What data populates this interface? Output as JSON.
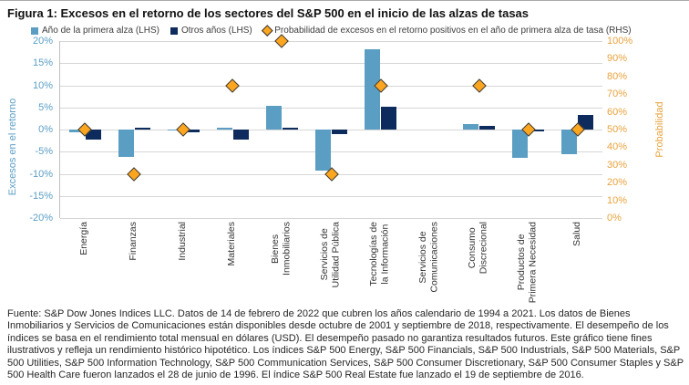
{
  "title": "Figura 1: Excesos en el retorno de los sectores del S&P 500 en el inicio de las alzas de tasas",
  "footnote": "Fuente: S&P Dow Jones Indices LLC. Datos de 14 de febrero de 2022 que cubren los años calendario de 1994 a 2021. Los datos de Bienes Inmobiliarios y Servicios de Comunicaciones están disponibles desde octubre de 2001 y septiembre de 2018, respectivamente. El desempeño de los índices se basa en el rendimiento total mensual en dólares (USD). El desempeño pasado no garantiza resultados futuros. Este gráfico tiene fines ilustrativos y refleja un rendimiento histórico hipotético. Los índices S&P 500 Energy, S&P 500 Financials, S&P 500 Industrials, S&P 500 Materials, S&P 500 Utilities, S&P 500 Information Technology, S&P 500 Communication Services, S&P 500 Consumer Discretionary, S&P 500 Consumer Staples y S&P 500 Health Care fueron lanzados el 28 de junio de 1996. El índice S&P 500 Real Estate fue lanzado el 19 de septiembre de 2016.",
  "chart_data": {
    "type": "bar",
    "legend_position": "top",
    "grid": true,
    "categories": [
      "Energía",
      "Finanzas",
      "Industrial",
      "Materiales",
      "Bienes Inmobiliarios",
      "Servicios de Utilidad Pública",
      "Tecnologías de la Información",
      "Servicios de Comunicaciones",
      "Consumo Discrecional",
      "Productos de Primera Necesidad",
      "Salud"
    ],
    "categories_display": [
      "Energía",
      "Finanzas",
      "Industrial",
      "Materiales",
      "Bienes\nInmobiliarios",
      "Servicios de\nUtilidad Pública",
      "Tecnologías de\nla Información",
      "Servicios de\nComunicaciones",
      "Consumo\nDiscrecional",
      "Productos de\nPrimera Necesidad",
      "Salud"
    ],
    "series": [
      {
        "name": "Año de la primera alza (LHS)",
        "type": "bar",
        "axis": "left",
        "marker": "square",
        "color": "#5b9ec4",
        "values": [
          -0.7,
          -6.2,
          -0.1,
          0.5,
          5.3,
          -9.2,
          18.2,
          null,
          1.3,
          -6.3,
          -5.6
        ]
      },
      {
        "name": "Otros años (LHS)",
        "type": "bar",
        "axis": "left",
        "marker": "square",
        "color": "#0d2b5c",
        "values": [
          -2.3,
          0.5,
          -0.6,
          -2.2,
          0.4,
          -1.0,
          5.1,
          null,
          0.9,
          -0.4,
          3.4
        ]
      },
      {
        "name": "Probabilidad de excesos en el retorno positivos en el año de primera alza de tasa (RHS)",
        "type": "scatter",
        "axis": "right",
        "marker": "diamond",
        "color": "#fca61f",
        "values": [
          50,
          25,
          50,
          75,
          100,
          25,
          75,
          null,
          75,
          50,
          50
        ]
      }
    ],
    "left_axis": {
      "label": "Excesos en el retorno",
      "min": -20,
      "max": 20,
      "step": 5,
      "tick_suffix": "%",
      "color": "#5b9ec4"
    },
    "right_axis": {
      "label": "Probabilidad",
      "min": 0,
      "max": 100,
      "step": 10,
      "tick_suffix": "%",
      "color": "#e8a33d"
    }
  }
}
